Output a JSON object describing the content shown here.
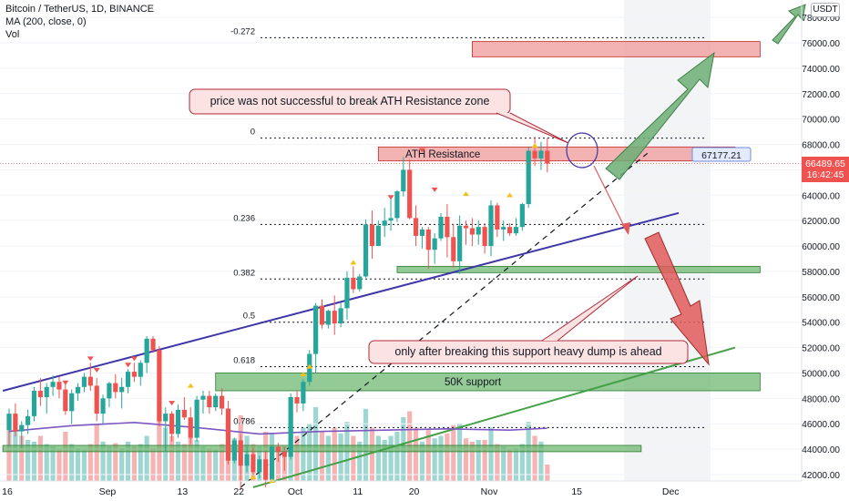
{
  "header": {
    "symbol_line": "Bitcoin / TetherUS, 1D, BINANCE",
    "ma_line": "MA (200, close, 0)",
    "vol_line": "Vol"
  },
  "currency_button": "USDT",
  "last_price": {
    "price": "66489.65",
    "countdown": "16:42:45"
  },
  "colors": {
    "up": "#26a69a",
    "down": "#ef5350",
    "trendline": "#3f36a8",
    "ma": "#7e57c2",
    "support_zone": "#67b36a",
    "resist_zone": "#ef9a9a",
    "arrow_green": "#6cae74",
    "arrow_red": "#e05a5a"
  },
  "annotations": {
    "callout_top": "price was not successful to break ATH Resistance zone",
    "callout_bottom": "only after breaking this support heavy dump is ahead",
    "ath_label": "ATH Resistance",
    "support_label": "50K support",
    "target_label": "67177.21"
  },
  "chart_data": {
    "type": "candlestick",
    "title": "Bitcoin / TetherUS, 1D, BINANCE",
    "y_axis": {
      "min": 41000,
      "max": 79000,
      "unit": "USDT",
      "ticks": [
        42000,
        44000,
        46000,
        48000,
        50000,
        52000,
        54000,
        56000,
        58000,
        60000,
        62000,
        64000,
        66000,
        68000,
        70000,
        72000,
        74000,
        76000,
        78000
      ],
      "tick_labels": [
        "42000.00",
        "44000.00",
        "46000.00",
        "48000.00",
        "50000.00",
        "52000.00",
        "54000.00",
        "56000.00",
        "58000.00",
        "60000.00",
        "62000.00",
        "64000.00",
        "66000.00",
        "68000.00",
        "70000.00",
        "72000.00",
        "74000.00",
        "76000.00",
        "78000.00"
      ]
    },
    "x_axis": {
      "ticks": [
        {
          "label": "16",
          "index": 0
        },
        {
          "label": "Sep",
          "index": 16
        },
        {
          "label": "13",
          "index": 28
        },
        {
          "label": "22",
          "index": 37
        },
        {
          "label": "Oct",
          "index": 46
        },
        {
          "label": "11",
          "index": 56
        },
        {
          "label": "20",
          "index": 65
        },
        {
          "label": "Nov",
          "index": 77
        },
        {
          "label": "15",
          "index": 91
        },
        {
          "label": "Dec",
          "index": 106
        }
      ]
    },
    "fib_levels": [
      {
        "label": "-0.272",
        "value": 76400
      },
      {
        "label": "0",
        "value": 68500
      },
      {
        "label": "0.236",
        "value": 61700
      },
      {
        "label": "0.382",
        "value": 57400
      },
      {
        "label": "0.5",
        "value": 54000
      },
      {
        "label": "0.618",
        "value": 50500
      },
      {
        "label": "0.786",
        "value": 45700
      }
    ],
    "candles": [
      [
        45500,
        47200,
        44200,
        46800
      ],
      [
        46800,
        47600,
        45000,
        45400
      ],
      [
        45400,
        46200,
        44100,
        45900
      ],
      [
        45900,
        47100,
        45200,
        46600
      ],
      [
        46600,
        48900,
        46200,
        48600
      ],
      [
        48600,
        49600,
        47400,
        48100
      ],
      [
        48100,
        49200,
        46800,
        48900
      ],
      [
        48900,
        49800,
        48200,
        49300
      ],
      [
        49300,
        49700,
        48000,
        48700
      ],
      [
        48700,
        49400,
        46700,
        47000
      ],
      [
        47000,
        48700,
        46000,
        48400
      ],
      [
        48400,
        49200,
        47800,
        48900
      ],
      [
        48900,
        50000,
        48500,
        49700
      ],
      [
        49700,
        50800,
        48600,
        49000
      ],
      [
        49000,
        49600,
        46200,
        46800
      ],
      [
        46800,
        48300,
        46000,
        48000
      ],
      [
        48000,
        49300,
        47300,
        49200
      ],
      [
        49200,
        49900,
        48000,
        48500
      ],
      [
        48500,
        49600,
        47200,
        48900
      ],
      [
        48900,
        50300,
        48400,
        50100
      ],
      [
        50100,
        50800,
        49300,
        49700
      ],
      [
        49700,
        51000,
        49000,
        50800
      ],
      [
        50800,
        52900,
        50000,
        52700
      ],
      [
        52700,
        52900,
        51600,
        51800
      ],
      [
        51800,
        52100,
        45800,
        46200
      ],
      [
        46200,
        47300,
        43800,
        46800
      ],
      [
        46800,
        47000,
        44600,
        45200
      ],
      [
        45200,
        47500,
        44900,
        47100
      ],
      [
        47100,
        48100,
        46300,
        46500
      ],
      [
        46500,
        47300,
        44400,
        44900
      ],
      [
        44900,
        48200,
        44600,
        47900
      ],
      [
        47900,
        48600,
        46800,
        48200
      ],
      [
        48200,
        48600,
        46800,
        47300
      ],
      [
        47300,
        48400,
        47000,
        48200
      ],
      [
        48200,
        48800,
        46700,
        47200
      ],
      [
        47200,
        47800,
        42800,
        43100
      ],
      [
        43100,
        44900,
        42900,
        44700
      ],
      [
        44700,
        45200,
        40800,
        42700
      ],
      [
        42700,
        44200,
        42200,
        43600
      ],
      [
        43600,
        44100,
        41900,
        42200
      ],
      [
        42200,
        43500,
        41700,
        43200
      ],
      [
        43200,
        43800,
        41000,
        41600
      ],
      [
        41600,
        44300,
        41400,
        44200
      ],
      [
        44200,
        44500,
        43000,
        43800
      ],
      [
        43800,
        44200,
        42300,
        43400
      ],
      [
        43400,
        48400,
        43200,
        48100
      ],
      [
        48100,
        48600,
        46900,
        47600
      ],
      [
        47600,
        49500,
        47000,
        49300
      ],
      [
        49300,
        51800,
        49000,
        51500
      ],
      [
        51500,
        55500,
        50000,
        55300
      ],
      [
        55300,
        55800,
        53500,
        53800
      ],
      [
        53800,
        55000,
        53500,
        54900
      ],
      [
        54900,
        56100,
        53000,
        53900
      ],
      [
        53900,
        55500,
        53600,
        55100
      ],
      [
        55100,
        58000,
        54200,
        57500
      ],
      [
        57500,
        58400,
        56300,
        56600
      ],
      [
        56600,
        57800,
        56400,
        57600
      ],
      [
        57600,
        62100,
        57500,
        61700
      ],
      [
        61700,
        62800,
        59000,
        60000
      ],
      [
        60000,
        62000,
        60000,
        61600
      ],
      [
        61600,
        63000,
        60700,
        62000
      ],
      [
        62000,
        63800,
        61200,
        62200
      ],
      [
        62200,
        64400,
        61900,
        64300
      ],
      [
        64300,
        67000,
        63900,
        66000
      ],
      [
        66000,
        66800,
        62100,
        62200
      ],
      [
        62200,
        63200,
        60000,
        60800
      ],
      [
        60800,
        61500,
        59800,
        61300
      ],
      [
        61300,
        61500,
        58200,
        59700
      ],
      [
        59700,
        61000,
        58600,
        60600
      ],
      [
        60600,
        62600,
        60400,
        62300
      ],
      [
        62300,
        63300,
        59100,
        60700
      ],
      [
        60700,
        61700,
        58300,
        58800
      ],
      [
        58800,
        62400,
        57800,
        61600
      ],
      [
        61600,
        62000,
        60100,
        61400
      ],
      [
        61400,
        62200,
        60000,
        60900
      ],
      [
        60900,
        62000,
        60100,
        61500
      ],
      [
        61500,
        61800,
        59400,
        60000
      ],
      [
        60000,
        63600,
        59200,
        63200
      ],
      [
        63200,
        63400,
        60700,
        61300
      ],
      [
        61300,
        62000,
        60400,
        61500
      ],
      [
        61500,
        61800,
        60800,
        61000
      ],
      [
        61000,
        62200,
        60800,
        61500
      ],
      [
        61500,
        63400,
        61200,
        63300
      ],
      [
        63300,
        67800,
        63000,
        67500
      ],
      [
        67500,
        68600,
        66300,
        66900
      ],
      [
        66900,
        68200,
        66000,
        67500
      ],
      [
        67500,
        68500,
        65800,
        66489.65
      ]
    ],
    "volumes": [
      [
        0.8,
        0
      ],
      [
        0.62,
        1
      ],
      [
        0.55,
        0
      ],
      [
        0.5,
        1
      ],
      [
        0.48,
        1
      ],
      [
        0.55,
        0
      ],
      [
        0.45,
        1
      ],
      [
        0.42,
        1
      ],
      [
        0.38,
        0
      ],
      [
        0.6,
        0
      ],
      [
        0.45,
        1
      ],
      [
        0.4,
        1
      ],
      [
        0.38,
        1
      ],
      [
        0.45,
        0
      ],
      [
        0.7,
        0
      ],
      [
        0.48,
        1
      ],
      [
        0.42,
        1
      ],
      [
        0.46,
        0
      ],
      [
        0.4,
        1
      ],
      [
        0.48,
        1
      ],
      [
        0.42,
        0
      ],
      [
        0.45,
        1
      ],
      [
        0.55,
        1
      ],
      [
        0.4,
        0
      ],
      [
        0.95,
        0
      ],
      [
        0.65,
        1
      ],
      [
        0.55,
        0
      ],
      [
        0.48,
        1
      ],
      [
        0.45,
        0
      ],
      [
        0.55,
        0
      ],
      [
        0.5,
        1
      ],
      [
        0.42,
        1
      ],
      [
        0.4,
        0
      ],
      [
        0.38,
        1
      ],
      [
        0.45,
        0
      ],
      [
        0.75,
        0
      ],
      [
        0.52,
        1
      ],
      [
        0.8,
        0
      ],
      [
        0.55,
        1
      ],
      [
        0.45,
        0
      ],
      [
        0.42,
        1
      ],
      [
        0.6,
        0
      ],
      [
        0.58,
        1
      ],
      [
        0.4,
        0
      ],
      [
        0.42,
        0
      ],
      [
        0.85,
        1
      ],
      [
        0.55,
        0
      ],
      [
        0.65,
        1
      ],
      [
        0.7,
        1
      ],
      [
        0.9,
        1
      ],
      [
        0.6,
        0
      ],
      [
        0.55,
        1
      ],
      [
        0.65,
        0
      ],
      [
        0.58,
        1
      ],
      [
        0.72,
        1
      ],
      [
        0.55,
        0
      ],
      [
        0.48,
        1
      ],
      [
        0.88,
        1
      ],
      [
        0.65,
        0
      ],
      [
        0.55,
        1
      ],
      [
        0.5,
        1
      ],
      [
        0.55,
        1
      ],
      [
        0.6,
        1
      ],
      [
        0.78,
        1
      ],
      [
        0.85,
        0
      ],
      [
        0.65,
        0
      ],
      [
        0.48,
        1
      ],
      [
        0.62,
        0
      ],
      [
        0.52,
        1
      ],
      [
        0.55,
        1
      ],
      [
        0.58,
        0
      ],
      [
        0.68,
        0
      ],
      [
        0.7,
        1
      ],
      [
        0.52,
        0
      ],
      [
        0.48,
        0
      ],
      [
        0.5,
        1
      ],
      [
        0.5,
        0
      ],
      [
        0.65,
        1
      ],
      [
        0.45,
        0
      ],
      [
        0.42,
        1
      ],
      [
        0.38,
        0
      ],
      [
        0.4,
        1
      ],
      [
        0.45,
        1
      ],
      [
        0.72,
        1
      ],
      [
        0.55,
        0
      ],
      [
        0.48,
        1
      ],
      [
        0.2,
        0
      ]
    ],
    "ma200": [
      {
        "index": 0,
        "value": 45400
      },
      {
        "index": 10,
        "value": 45850
      },
      {
        "index": 20,
        "value": 46100
      },
      {
        "index": 30,
        "value": 45700
      },
      {
        "index": 40,
        "value": 45200
      },
      {
        "index": 50,
        "value": 45400
      },
      {
        "index": 60,
        "value": 45500
      },
      {
        "index": 70,
        "value": 45600
      },
      {
        "index": 80,
        "value": 45500
      },
      {
        "index": 86,
        "value": 45650
      }
    ],
    "trendlines": [
      {
        "name": "ascending-support",
        "color": "#3f36a8",
        "from": {
          "index": -1,
          "value": 48600
        },
        "to": {
          "index": 107,
          "value": 62600
        }
      },
      {
        "name": "long-term-support",
        "color": "#43a047",
        "from": {
          "index": 39,
          "value": 41000
        },
        "to": {
          "index": 116,
          "value": 52000
        }
      },
      {
        "name": "projection-dashed",
        "color": "#131722",
        "from": {
          "index": 37,
          "value": 41000
        },
        "to": {
          "index": 102,
          "value": 67300
        }
      }
    ],
    "zones": [
      {
        "name": "ath-resistance",
        "from_index": 59,
        "to_index": 116,
        "low": 66700,
        "high": 67800
      },
      {
        "name": "target-zone",
        "from_index": 74,
        "to_index": 120,
        "low": 74900,
        "high": 76100
      },
      {
        "name": "support-58k",
        "from_index": 62,
        "to_index": 120,
        "low": 57900,
        "high": 58400
      },
      {
        "name": "support-50k",
        "from_index": 33,
        "to_index": 120,
        "low": 48600,
        "high": 50000
      },
      {
        "name": "support-44k",
        "from_index": -1,
        "to_index": 101,
        "low": 43800,
        "high": 44300
      }
    ]
  }
}
